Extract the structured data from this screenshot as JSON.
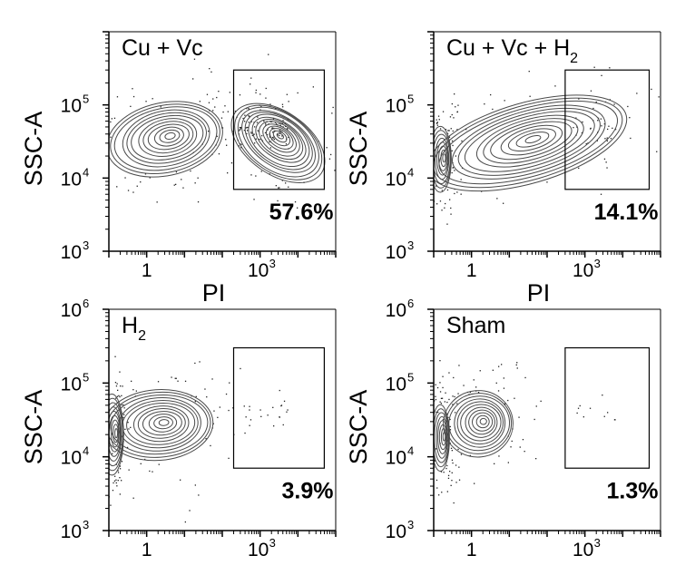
{
  "chart_data": [
    {
      "type": "contour",
      "title": "Cu + Vc",
      "title_sub": "",
      "xlabel": "PI",
      "ylabel": "SSC-A",
      "xlog": true,
      "ylog": true,
      "xlim": [
        0.1,
        100000
      ],
      "ylim": [
        1000,
        1000000
      ],
      "xticks": [
        "1",
        "10",
        "3"
      ],
      "yticks": [
        {
          "base": "10",
          "exp": "3"
        },
        {
          "base": "10",
          "exp": "4"
        },
        {
          "base": "10",
          "exp": "5"
        }
      ],
      "gate": {
        "x": [
          200,
          50000
        ],
        "y": [
          7000,
          300000
        ]
      },
      "gate_label": "57.6%",
      "populations": [
        {
          "cx": 3,
          "cy": 34000,
          "rx": 1.6,
          "ry": 0.5,
          "angle": -12,
          "levels": 12
        },
        {
          "cx": 3000,
          "cy": 30000,
          "rx": 0.85,
          "ry": 0.72,
          "angle": -55,
          "levels": 14
        }
      ]
    },
    {
      "type": "contour",
      "title": "Cu + Vc + H",
      "title_sub": "2",
      "xlabel": "PI",
      "ylabel": "SSC-A",
      "xlog": true,
      "ylog": true,
      "xlim": [
        0.1,
        100000
      ],
      "ylim": [
        1000,
        1000000
      ],
      "xticks": [
        "1",
        "10",
        "3"
      ],
      "yticks": [
        {
          "base": "10",
          "exp": "3"
        },
        {
          "base": "10",
          "exp": "4"
        },
        {
          "base": "10",
          "exp": "5"
        }
      ],
      "gate": {
        "x": [
          300,
          50000
        ],
        "y": [
          7000,
          300000
        ]
      },
      "gate_label": "14.1%",
      "populations": [
        {
          "cx": 30,
          "cy": 30000,
          "rx": 2.8,
          "ry": 0.55,
          "angle": -16,
          "levels": 13
        },
        {
          "cx": 0.15,
          "cy": 18000,
          "rx": 0.3,
          "ry": 0.45,
          "angle": 0,
          "levels": 8
        }
      ]
    },
    {
      "type": "contour",
      "title": "H",
      "title_sub": "2",
      "xlabel": "",
      "ylabel": "SSC-A",
      "xlog": true,
      "ylog": true,
      "xlim": [
        0.1,
        100000
      ],
      "ylim": [
        1000,
        1000000
      ],
      "xticks": [
        "1",
        "10",
        "3"
      ],
      "yticks": [
        {
          "base": "10",
          "exp": "3"
        },
        {
          "base": "10",
          "exp": "4"
        },
        {
          "base": "10",
          "exp": "5"
        },
        {
          "base": "10",
          "exp": "6"
        }
      ],
      "gate": {
        "x": [
          200,
          50000
        ],
        "y": [
          7000,
          300000
        ]
      },
      "gate_label": "3.9%",
      "populations": [
        {
          "cx": 2,
          "cy": 27000,
          "rx": 1.5,
          "ry": 0.48,
          "angle": -4,
          "levels": 12
        },
        {
          "cx": 0.12,
          "cy": 20000,
          "rx": 0.32,
          "ry": 0.55,
          "angle": 0,
          "levels": 9
        }
      ]
    },
    {
      "type": "contour",
      "title": "Sham",
      "title_sub": "",
      "xlabel": "",
      "ylabel": "SSC-A",
      "xlog": true,
      "ylog": true,
      "xlim": [
        0.1,
        100000
      ],
      "ylim": [
        1000,
        1000000
      ],
      "xticks": [
        "1",
        "10",
        "3"
      ],
      "yticks": [
        {
          "base": "10",
          "exp": "3"
        },
        {
          "base": "10",
          "exp": "4"
        },
        {
          "base": "10",
          "exp": "5"
        },
        {
          "base": "10",
          "exp": "6"
        }
      ],
      "gate": {
        "x": [
          300,
          50000
        ],
        "y": [
          7000,
          300000
        ]
      },
      "gate_label": "1.3%",
      "populations": [
        {
          "cx": 1.5,
          "cy": 28000,
          "rx": 0.95,
          "ry": 0.45,
          "angle": -6,
          "levels": 11
        },
        {
          "cx": 0.15,
          "cy": 18000,
          "rx": 0.25,
          "ry": 0.45,
          "angle": 0,
          "levels": 8
        }
      ]
    }
  ],
  "colors": {
    "contour": "#4a4a4a",
    "frame": "#000000",
    "dots": "#222222"
  }
}
